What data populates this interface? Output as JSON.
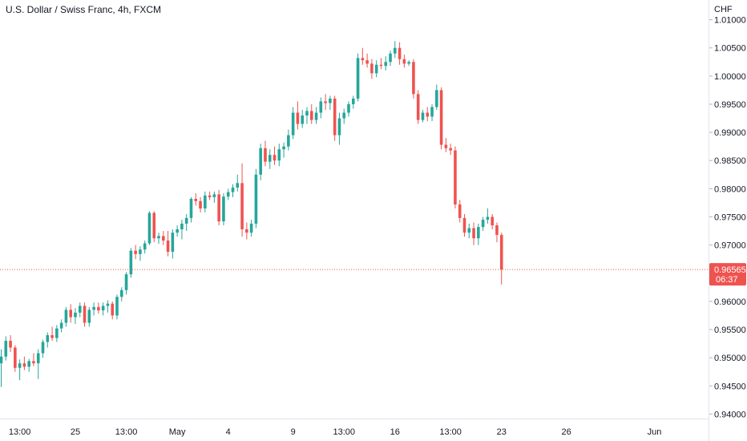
{
  "chart": {
    "title": "U.S. Dollar / Swiss Franc, 4h, FXCM",
    "currency": "CHF"
  },
  "chart_data": {
    "type": "candlestick",
    "symbol": "USDCHF",
    "timeframe": "4h",
    "ylim": [
      0.9392,
      1.0135
    ],
    "y_ticks": [
      "1.01000",
      "1.00500",
      "1.00000",
      "0.99500",
      "0.99000",
      "0.98500",
      "0.98000",
      "0.97500",
      "0.97000",
      "0.96500",
      "0.96000",
      "0.95500",
      "0.95000",
      "0.94500",
      "0.94000"
    ],
    "x_ticks": [
      "13:00",
      "25",
      "13:00",
      "May",
      "4",
      "9",
      "13:00",
      "16",
      "13:00",
      "23",
      "26",
      "Jun"
    ],
    "x_tick_bars": [
      4,
      16,
      27,
      38,
      49,
      63,
      74,
      85,
      97,
      108,
      122,
      141
    ],
    "last_price": "0.96565",
    "countdown": "06:37",
    "colors": {
      "up": "#26a69a",
      "down": "#ef5350",
      "axis_text": "#131722",
      "last_line": "#ef5350"
    },
    "candles": [
      [
        0.949,
        0.9515,
        0.9448,
        0.9502
      ],
      [
        0.9502,
        0.9538,
        0.9495,
        0.953
      ],
      [
        0.953,
        0.954,
        0.951,
        0.9518
      ],
      [
        0.9518,
        0.9522,
        0.9475,
        0.9482
      ],
      [
        0.9482,
        0.9497,
        0.946,
        0.949
      ],
      [
        0.949,
        0.9502,
        0.9478,
        0.9484
      ],
      [
        0.9484,
        0.9498,
        0.9475,
        0.9494
      ],
      [
        0.9494,
        0.9508,
        0.9485,
        0.949
      ],
      [
        0.949,
        0.9515,
        0.9462,
        0.9508
      ],
      [
        0.9508,
        0.9532,
        0.95,
        0.9528
      ],
      [
        0.9528,
        0.9545,
        0.9518,
        0.954
      ],
      [
        0.954,
        0.9555,
        0.953,
        0.9535
      ],
      [
        0.9535,
        0.9558,
        0.9528,
        0.9552
      ],
      [
        0.9552,
        0.9568,
        0.9545,
        0.9562
      ],
      [
        0.9562,
        0.959,
        0.9555,
        0.9585
      ],
      [
        0.9585,
        0.9595,
        0.9562,
        0.9572
      ],
      [
        0.9572,
        0.9588,
        0.956,
        0.958
      ],
      [
        0.958,
        0.9598,
        0.9572,
        0.9592
      ],
      [
        0.9592,
        0.9598,
        0.9555,
        0.9562
      ],
      [
        0.9562,
        0.959,
        0.9555,
        0.9585
      ],
      [
        0.9585,
        0.9598,
        0.9575,
        0.959
      ],
      [
        0.959,
        0.9598,
        0.9578,
        0.9584
      ],
      [
        0.9584,
        0.9598,
        0.9575,
        0.9592
      ],
      [
        0.9592,
        0.9602,
        0.958,
        0.9596
      ],
      [
        0.9596,
        0.96,
        0.9568,
        0.9575
      ],
      [
        0.9575,
        0.9612,
        0.9568,
        0.9608
      ],
      [
        0.9608,
        0.9625,
        0.96,
        0.962
      ],
      [
        0.962,
        0.9652,
        0.9612,
        0.9648
      ],
      [
        0.9648,
        0.9695,
        0.9642,
        0.969
      ],
      [
        0.969,
        0.97,
        0.9675,
        0.9684
      ],
      [
        0.9684,
        0.9698,
        0.9672,
        0.9692
      ],
      [
        0.9692,
        0.9708,
        0.9685,
        0.9703
      ],
      [
        0.9703,
        0.976,
        0.97,
        0.9757
      ],
      [
        0.9757,
        0.976,
        0.9705,
        0.9712
      ],
      [
        0.9712,
        0.9722,
        0.9702,
        0.9716
      ],
      [
        0.9716,
        0.9725,
        0.97,
        0.9708
      ],
      [
        0.9708,
        0.9725,
        0.968,
        0.9688
      ],
      [
        0.9688,
        0.9728,
        0.9676,
        0.9722
      ],
      [
        0.9722,
        0.9735,
        0.9715,
        0.9728
      ],
      [
        0.9728,
        0.9745,
        0.971,
        0.9738
      ],
      [
        0.9738,
        0.9755,
        0.9725,
        0.9748
      ],
      [
        0.9748,
        0.9785,
        0.974,
        0.9782
      ],
      [
        0.9782,
        0.9792,
        0.977,
        0.9778
      ],
      [
        0.9778,
        0.9785,
        0.9758,
        0.9765
      ],
      [
        0.9765,
        0.9795,
        0.9758,
        0.9788
      ],
      [
        0.9788,
        0.9795,
        0.978,
        0.9785
      ],
      [
        0.9785,
        0.9795,
        0.9775,
        0.979
      ],
      [
        0.979,
        0.9798,
        0.9735,
        0.9742
      ],
      [
        0.9742,
        0.9792,
        0.9735,
        0.9786
      ],
      [
        0.9786,
        0.98,
        0.978,
        0.9794
      ],
      [
        0.9794,
        0.9808,
        0.9785,
        0.9802
      ],
      [
        0.9802,
        0.9825,
        0.9795,
        0.981
      ],
      [
        0.981,
        0.9845,
        0.9715,
        0.9728
      ],
      [
        0.9728,
        0.974,
        0.971,
        0.9722
      ],
      [
        0.9722,
        0.9745,
        0.9715,
        0.9738
      ],
      [
        0.9738,
        0.9835,
        0.973,
        0.9825
      ],
      [
        0.9825,
        0.988,
        0.9815,
        0.9872
      ],
      [
        0.9872,
        0.9885,
        0.984,
        0.9848
      ],
      [
        0.9848,
        0.987,
        0.9835,
        0.986
      ],
      [
        0.986,
        0.9875,
        0.9842,
        0.985
      ],
      [
        0.985,
        0.988,
        0.984,
        0.987
      ],
      [
        0.987,
        0.9882,
        0.9855,
        0.9875
      ],
      [
        0.9875,
        0.9905,
        0.9868,
        0.9895
      ],
      [
        0.9895,
        0.9945,
        0.9888,
        0.9935
      ],
      [
        0.9935,
        0.9955,
        0.9905,
        0.9915
      ],
      [
        0.9915,
        0.994,
        0.9908,
        0.993
      ],
      [
        0.993,
        0.9945,
        0.9915,
        0.9938
      ],
      [
        0.9938,
        0.995,
        0.9915,
        0.9922
      ],
      [
        0.9922,
        0.9945,
        0.9915,
        0.9935
      ],
      [
        0.9935,
        0.9962,
        0.9925,
        0.9955
      ],
      [
        0.9955,
        0.9968,
        0.994,
        0.9952
      ],
      [
        0.9952,
        0.9965,
        0.994,
        0.996
      ],
      [
        0.996,
        0.9965,
        0.9885,
        0.9895
      ],
      [
        0.9895,
        0.9935,
        0.9878,
        0.9925
      ],
      [
        0.9925,
        0.9942,
        0.9915,
        0.9935
      ],
      [
        0.9935,
        0.9955,
        0.9928,
        0.995
      ],
      [
        0.995,
        0.9965,
        0.9942,
        0.996
      ],
      [
        0.996,
        1.004,
        0.9955,
        1.0032
      ],
      [
        1.0032,
        1.005,
        1.002,
        1.0028
      ],
      [
        1.0028,
        1.004,
        1.0015,
        1.0022
      ],
      [
        1.0022,
        1.003,
        0.9995,
        1.0005
      ],
      [
        1.0005,
        1.0028,
        0.9998,
        1.002
      ],
      [
        1.002,
        1.0032,
        1.0012,
        1.0018
      ],
      [
        1.0018,
        1.0035,
        1.001,
        1.0025
      ],
      [
        1.0025,
        1.0045,
        1.0018,
        1.004
      ],
      [
        1.004,
        1.0062,
        1.0032,
        1.005
      ],
      [
        1.005,
        1.006,
        1.002,
        1.003
      ],
      [
        1.003,
        1.0038,
        1.0015,
        1.0022
      ],
      [
        1.0022,
        1.0028,
        1.0018,
        1.0025
      ],
      [
        1.0025,
        1.003,
        0.996,
        0.9968
      ],
      [
        0.9968,
        0.9975,
        0.9915,
        0.9922
      ],
      [
        0.9922,
        0.994,
        0.9918,
        0.9935
      ],
      [
        0.9935,
        0.9945,
        0.992,
        0.9928
      ],
      [
        0.9928,
        0.995,
        0.992,
        0.9945
      ],
      [
        0.9945,
        0.9985,
        0.994,
        0.9975
      ],
      [
        0.9975,
        0.998,
        0.987,
        0.9878
      ],
      [
        0.9878,
        0.989,
        0.9865,
        0.9872
      ],
      [
        0.9872,
        0.988,
        0.986,
        0.9868
      ],
      [
        0.9868,
        0.9875,
        0.9765,
        0.9772
      ],
      [
        0.9772,
        0.978,
        0.974,
        0.9748
      ],
      [
        0.9748,
        0.9755,
        0.9715,
        0.9722
      ],
      [
        0.9722,
        0.9738,
        0.9712,
        0.973
      ],
      [
        0.973,
        0.974,
        0.97,
        0.9712
      ],
      [
        0.9712,
        0.9738,
        0.97,
        0.9732
      ],
      [
        0.9732,
        0.975,
        0.9725,
        0.9745
      ],
      [
        0.9745,
        0.9765,
        0.9738,
        0.975
      ],
      [
        0.975,
        0.9755,
        0.9728,
        0.9735
      ],
      [
        0.9735,
        0.974,
        0.9705,
        0.9718
      ],
      [
        0.9718,
        0.9722,
        0.963,
        0.96565
      ]
    ]
  }
}
